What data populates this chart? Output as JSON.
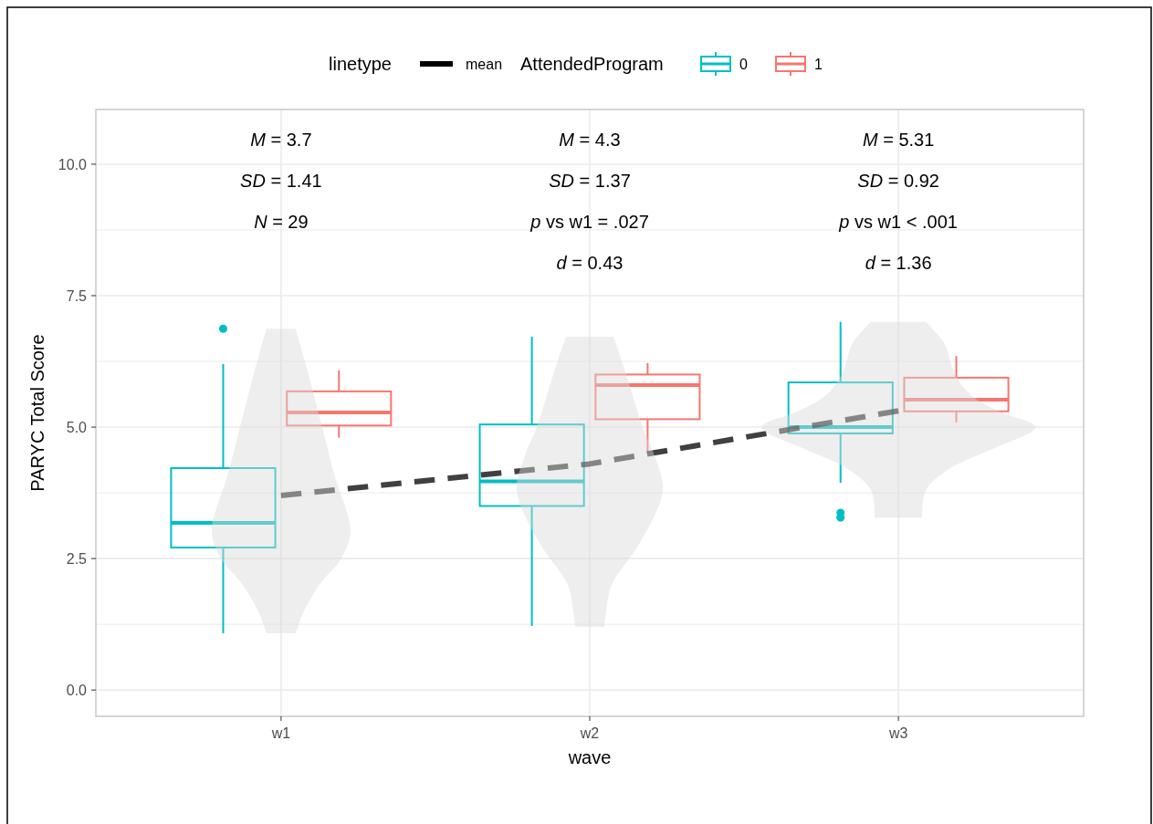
{
  "chart_data": {
    "type": "box",
    "xlabel": "wave",
    "ylabel": "PARYC Total Score",
    "legend_title": "AttendedProgram",
    "legend": "top",
    "grid": true,
    "categories": [
      "w1",
      "w2",
      "w3"
    ],
    "ylim": [
      -0.5,
      11.04
    ],
    "yticks": [
      {
        "value": 0,
        "label": "0.0"
      },
      {
        "value": 1.25,
        "label": null
      },
      {
        "value": 2.5,
        "label": "2.5"
      },
      {
        "value": 3.75,
        "label": null
      },
      {
        "value": 5,
        "label": "5.0"
      },
      {
        "value": 6.25,
        "label": null
      },
      {
        "value": 7.5,
        "label": "7.5"
      },
      {
        "value": 8.75,
        "label": null
      },
      {
        "value": 10,
        "label": "10.0"
      }
    ],
    "series": [
      {
        "name": "0",
        "color": "#00bfc4",
        "boxes": [
          {
            "low": 1.08,
            "q1": 2.71,
            "median": 3.18,
            "q3": 4.22,
            "high": 6.2,
            "outliers": [
              6.87
            ]
          },
          {
            "low": 1.22,
            "q1": 3.5,
            "median": 3.97,
            "q3": 5.05,
            "high": 6.72
          },
          {
            "low": 3.94,
            "q1": 4.88,
            "median": 5.0,
            "q3": 5.85,
            "high": 7.0,
            "outliers": [
              3.37,
              3.28
            ]
          }
        ]
      },
      {
        "name": "1",
        "color": "#f8766d",
        "boxes": [
          {
            "low": 4.8,
            "q1": 5.03,
            "median": 5.28,
            "q3": 5.68,
            "high": 6.08
          },
          {
            "low": 4.51,
            "q1": 5.15,
            "median": 5.8,
            "q3": 6.0,
            "high": 6.22
          },
          {
            "low": 5.09,
            "q1": 5.3,
            "median": 5.52,
            "q3": 5.94,
            "high": 6.35
          }
        ]
      },
      {
        "name": "mean",
        "type": "line",
        "color": "#000000",
        "line_style": "dashed",
        "values": [
          3.7,
          4.3,
          5.31
        ]
      }
    ],
    "annotations": [
      "linetype",
      "M = 3.7\nSD = 1.41\nN = 29",
      "M = 4.3\nSD = 1.37\np vs w1 = .027\nd = 0.43",
      "M = 5.31\nSD = 0.92\np vs w1 < .001\nd = 1.36"
    ]
  }
}
